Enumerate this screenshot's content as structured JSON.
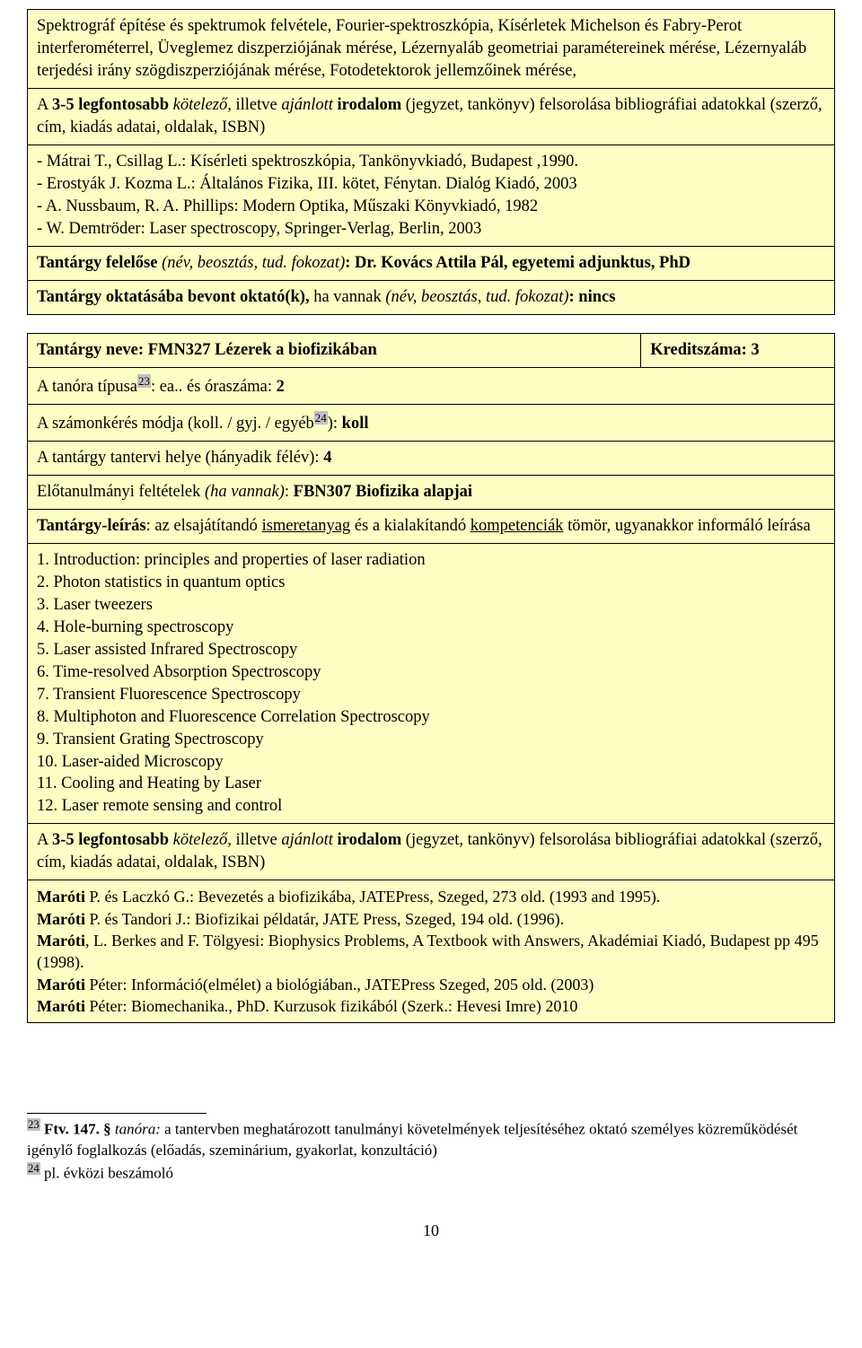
{
  "colors": {
    "cell_bg": "#fdfec3",
    "border": "#000000",
    "text": "#000000",
    "sup_bg": "#c0c0c0"
  },
  "course1": {
    "desc_text": "Spektrográf építése és spektrumok felvétele, Fourier-spektroszkópia, Kísérletek Michelson és Fabry-Perot interferométerrel, Üveglemez diszperziójának mérése, Lézernyaláb geometriai paramétereinek mérése, Lézernyaláb terjedési irány szögdiszperziójának mérése, Fotodetektorok jellemzőinek mérése,",
    "lit_heading_a": "A ",
    "lit_heading_b": "3-5 legfontosabb ",
    "lit_heading_c": "kötelező,",
    "lit_heading_d": " illetve ",
    "lit_heading_e": "ajánlott",
    "lit_heading_f": " irodalom ",
    "lit_heading_g": "(jegyzet, tankönyv) felsorolása bibliográfiai adatokkal (szerző, cím, kiadás adatai, oldalak, ISBN)",
    "refs": [
      "- Mátrai T., Csillag L.: Kísérleti spektroszkópia, Tankönyvkiadó, Budapest ,1990.",
      "- Erostyák J. Kozma L.: Általános Fizika, III. kötet, Fénytan. Dialóg Kiadó, 2003",
      "- A. Nussbaum, R. A. Phillips: Modern Optika, Műszaki Könyvkiadó, 1982",
      "- W. Demtröder: Laser spectroscopy, Springer-Verlag, Berlin, 2003"
    ],
    "responsible_label": "Tantárgy felelőse ",
    "responsible_note": "(név, beosztás, tud. fokozat)",
    "responsible_colon": ": ",
    "responsible_value": "Dr. Kovács Attila Pál, egyetemi adjunktus, PhD",
    "instructors_label": "Tantárgy oktatásába bevont oktató(k), ",
    "instructors_note": "ha vannak ",
    "instructors_paren": "(név, beosztás, tud. fokozat)",
    "instructors_colon": ": ",
    "instructors_value": "nincs"
  },
  "course2": {
    "name_label": "Tantárgy neve: ",
    "name_value": "FMN327 Lézerek a biofizikában",
    "credit_label": "Kreditszáma: ",
    "credit_value": "3",
    "tanora_label": "A tanóra típusa",
    "tanora_sup": "23",
    "tanora_colon": ": ea.. ",
    "tanora_hours_label": "és óraszáma: ",
    "tanora_hours_value": "2",
    "assess_label": "A számonkérés módja (koll. / gyj. / egyéb",
    "assess_sup": "24",
    "assess_colon": "): ",
    "assess_value": "koll",
    "semester_label": "A tantárgy tantervi helye (hányadik félév): ",
    "semester_value": "4",
    "prereq_label": "Előtanulmányi feltételek ",
    "prereq_note": "(ha vannak)",
    "prereq_colon": ": ",
    "prereq_value": "FBN307 Biofizika alapjai",
    "desc_label": "Tantárgy-leírás",
    "desc_text": ": az elsajátítandó ",
    "desc_underline1": "ismeretanyag",
    "desc_middle": " és a kialakítandó ",
    "desc_underline2": "kompetenciák",
    "desc_end": " tömör, ugyanakkor informáló leírása",
    "topics": [
      "1. Introduction: principles and properties of laser radiation",
      "2. Photon statistics in quantum optics",
      "3. Laser tweezers",
      "4. Hole-burning spectroscopy",
      "5. Laser assisted Infrared Spectroscopy",
      "6. Time-resolved Absorption Spectroscopy",
      "7. Transient Fluorescence Spectroscopy",
      "8. Multiphoton and Fluorescence Correlation Spectroscopy",
      "9. Transient Grating Spectroscopy",
      "10. Laser-aided Microscopy",
      "11. Cooling and Heating by Laser",
      "12. Laser remote sensing and control"
    ],
    "lit_heading_a": "A ",
    "lit_heading_b": "3-5 legfontosabb ",
    "lit_heading_c": "kötelező,",
    "lit_heading_d": " illetve ",
    "lit_heading_e": "ajánlott",
    "lit_heading_f": " irodalom ",
    "lit_heading_g": "(jegyzet, tankönyv) felsorolása bibliográfiai adatokkal (szerző, cím, kiadás adatai, oldalak, ISBN)",
    "refs": [
      {
        "b": "Maróti",
        "rest": " P. és Laczkó G.: Bevezetés a biofizikába, JATEPress, Szeged, 273 old. (1993 and 1995)."
      },
      {
        "b": "Maróti",
        "rest": " P. és Tandori J.: Biofizikai példatár, JATE Press, Szeged, 194 old. (1996)."
      },
      {
        "b": "Maróti",
        "rest": ", L. Berkes and F. Tölgyesi: Biophysics Problems, A Textbook with Answers, Akadémiai Kiadó, Budapest pp 495 (1998)."
      },
      {
        "b": "Maróti",
        "rest": " Péter: Információ(elmélet) a biológiában., JATEPress Szeged, 205 old. (2003)"
      },
      {
        "b": "Maróti",
        "rest": " Péter: Biomechanika., PhD. Kurzusok fizikából (Szerk.: Hevesi Imre) 2010"
      }
    ]
  },
  "footnotes": {
    "fn23_num": "23",
    "fn23_b": "Ftv. 147. §",
    "fn23_i": " tanóra:",
    "fn23_rest": " a tantervben meghatározott tanulmányi követelmények teljesítéséhez oktató személyes közreműködését igénylő foglalkozás (előadás, szeminárium, gyakorlat, konzultáció)",
    "fn24_num": "24",
    "fn24_rest": " pl. évközi beszámoló"
  },
  "page_number": "10"
}
